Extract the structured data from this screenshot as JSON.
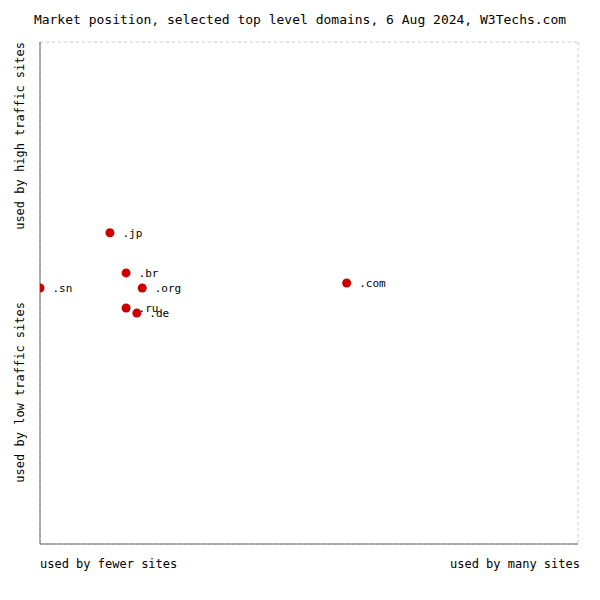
{
  "chart_data": {
    "type": "scatter",
    "title": "Market position, selected top level domains, 6 Aug 2024, W3Techs.com",
    "xlabel_left": "used by fewer sites",
    "xlabel_right": "used by many sites",
    "ylabel_top": "used by high traffic sites",
    "ylabel_bottom": "used by low traffic sites",
    "labels": [
      ".jp",
      ".sn",
      ".br",
      ".org",
      ".ru",
      ".de",
      ".com"
    ],
    "x": [
      13,
      0,
      16,
      19,
      16,
      18,
      57
    ],
    "values": [
      62,
      51,
      54,
      51,
      47,
      46,
      52
    ],
    "color": "#cc0000",
    "xlim": [
      0,
      100
    ],
    "ylim": [
      0,
      100
    ],
    "xticks": [
      0,
      12.5,
      25,
      37.5,
      50,
      62.5,
      75,
      87.5,
      100
    ],
    "yticks": [
      0,
      12.5,
      25,
      37.5,
      50,
      62.5,
      75,
      87.5,
      100
    ],
    "grid": true,
    "tick_labels": false
  }
}
